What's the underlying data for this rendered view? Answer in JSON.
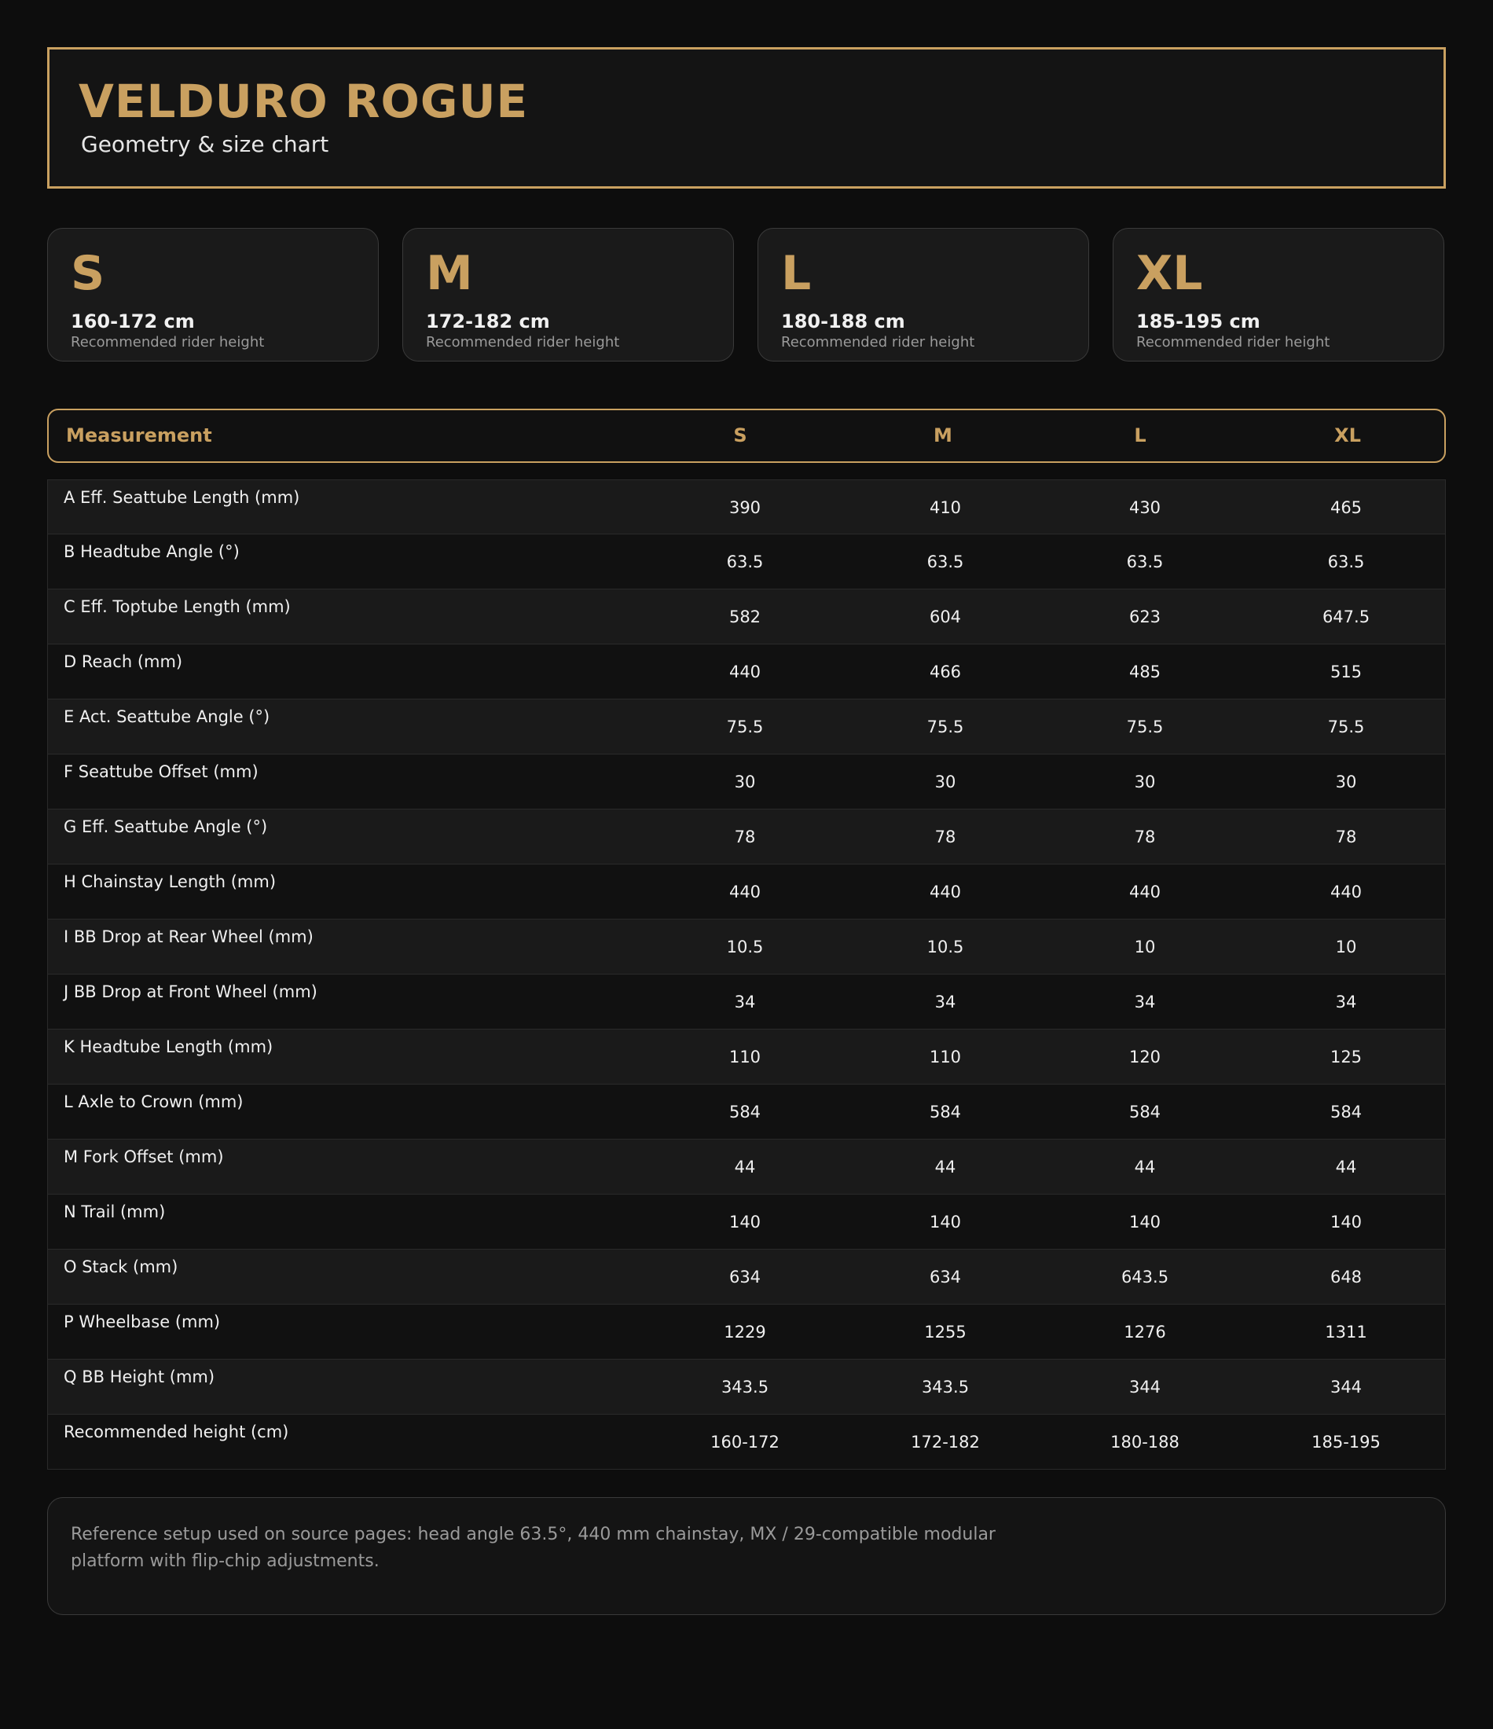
{
  "header": {
    "title": "VELDURO ROGUE",
    "subtitle": "Geometry & size chart"
  },
  "size_cards": [
    {
      "size": "S",
      "range": "160-172 cm",
      "caption": "Recommended rider height"
    },
    {
      "size": "M",
      "range": "172-182 cm",
      "caption": "Recommended rider height"
    },
    {
      "size": "L",
      "range": "180-188 cm",
      "caption": "Recommended rider height"
    },
    {
      "size": "XL",
      "range": "185-195 cm",
      "caption": "Recommended rider height"
    }
  ],
  "table": {
    "columns": [
      "Measurement",
      "S",
      "M",
      "L",
      "XL"
    ],
    "rows": [
      {
        "label": "A Eff. Seattube Length (mm)",
        "values": [
          390,
          410,
          430,
          465
        ]
      },
      {
        "label": "B Headtube Angle (°)",
        "values": [
          63.5,
          63.5,
          63.5,
          63.5
        ]
      },
      {
        "label": "C Eff. Toptube Length (mm)",
        "values": [
          582,
          604,
          623,
          647.5
        ]
      },
      {
        "label": "D Reach (mm)",
        "values": [
          440,
          466,
          485,
          515
        ]
      },
      {
        "label": "E Act. Seattube Angle (°)",
        "values": [
          75.5,
          75.5,
          75.5,
          75.5
        ]
      },
      {
        "label": "F Seattube Offset (mm)",
        "values": [
          30,
          30,
          30,
          30
        ]
      },
      {
        "label": "G Eff. Seattube Angle (°)",
        "values": [
          78,
          78,
          78,
          78
        ]
      },
      {
        "label": "H Chainstay Length (mm)",
        "values": [
          440,
          440,
          440,
          440
        ]
      },
      {
        "label": "I BB Drop at Rear Wheel (mm)",
        "values": [
          10.5,
          10.5,
          10,
          10
        ]
      },
      {
        "label": "J BB Drop at Front Wheel (mm)",
        "values": [
          34,
          34,
          34,
          34
        ]
      },
      {
        "label": "K Headtube Length (mm)",
        "values": [
          110,
          110,
          120,
          125
        ]
      },
      {
        "label": "L Axle to Crown (mm)",
        "values": [
          584,
          584,
          584,
          584
        ]
      },
      {
        "label": "M Fork Offset (mm)",
        "values": [
          44,
          44,
          44,
          44
        ]
      },
      {
        "label": "N Trail (mm)",
        "values": [
          140,
          140,
          140,
          140
        ]
      },
      {
        "label": "O Stack (mm)",
        "values": [
          634,
          634,
          643.5,
          648
        ]
      },
      {
        "label": "P Wheelbase (mm)",
        "values": [
          1229,
          1255,
          1276,
          1311
        ]
      },
      {
        "label": "Q BB Height (mm)",
        "values": [
          343.5,
          343.5,
          344,
          344
        ]
      },
      {
        "label": "Recommended height (cm)",
        "values": [
          "160-172",
          "172-182",
          "180-188",
          "185-195"
        ]
      }
    ]
  },
  "note": "Reference setup used on source pages: head angle 63.5°, 440 mm chainstay, MX / 29-compatible modular platform with flip-chip adjustments."
}
